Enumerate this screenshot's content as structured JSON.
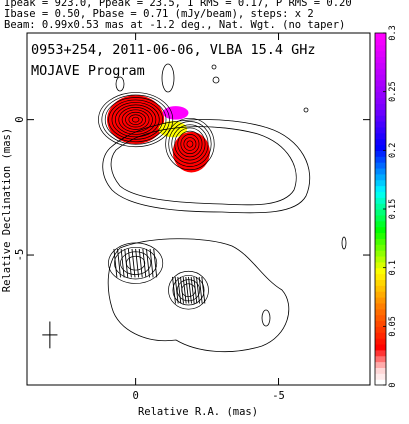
{
  "header": {
    "line1": "Ipeak = 923.0, Ppeak = 23.5, I RMS = 0.17, P RMS = 0.20",
    "line2": "Ibase = 0.50, Pbase = 0.71 (mJy/beam), steps: x 2",
    "line3": "Beam: 0.99x0.53 mas at -1.2 deg., Nat. Wgt. (no taper)"
  },
  "plot": {
    "title": "0953+254, 2011-06-06, VLBA 15.4 GHz",
    "subtitle": "MOJAVE Program"
  },
  "chart_data": {
    "type": "heatmap",
    "title": "0953+254, 2011-06-06, VLBA 15.4 GHz",
    "subtitle": "MOJAVE Program",
    "xlabel": "Relative R.A. (mas)",
    "ylabel": "Relative Declination (mas)",
    "x_range": [
      3.8,
      -8.2
    ],
    "y_range": [
      -9.8,
      3.2
    ],
    "x_ticks": [
      {
        "value": 0,
        "label": "0"
      },
      {
        "value": -5,
        "label": "-5"
      }
    ],
    "y_ticks": [
      {
        "value": 0,
        "label": "0"
      },
      {
        "value": -5,
        "label": "-5"
      }
    ],
    "colorbar": {
      "range": [
        0,
        0.3
      ],
      "ticks": [
        {
          "value": 0,
          "label": "0"
        },
        {
          "value": 0.05,
          "label": "0.05"
        },
        {
          "value": 0.1,
          "label": "0.1"
        },
        {
          "value": 0.15,
          "label": "0.15"
        },
        {
          "value": 0.2,
          "label": "0.2"
        },
        {
          "value": 0.25,
          "label": "0.25"
        },
        {
          "value": 0.3,
          "label": "0.3"
        }
      ],
      "colors": [
        "#ff0000",
        "#ff7f00",
        "#ffff00",
        "#00ff00",
        "#00ffff",
        "#0000ff",
        "#8000ff",
        "#ff00ff"
      ]
    },
    "total_intensity_components": [
      {
        "x": 0.0,
        "y": 0.0,
        "a": 1.3,
        "b": 1.0,
        "levels": 11
      },
      {
        "x": -1.9,
        "y": -0.9,
        "a": 0.85,
        "b": 0.95,
        "levels": 8
      }
    ],
    "polarization_components": [
      {
        "x": 0.0,
        "y": 0.0,
        "a": 1.0,
        "b": 0.9,
        "value": 0.01
      },
      {
        "x": -1.3,
        "y": -0.35,
        "a": 0.5,
        "b": 0.3,
        "value": 0.08
      },
      {
        "x": -1.4,
        "y": 0.25,
        "a": 0.45,
        "b": 0.25,
        "value": 0.3
      },
      {
        "x": -1.95,
        "y": -1.2,
        "a": 0.65,
        "b": 0.75,
        "value": 0.02
      }
    ],
    "fractional_polarization_components": [
      {
        "x": 0.0,
        "y": -5.3,
        "a": 0.95,
        "b": 0.75
      },
      {
        "x": -1.85,
        "y": -6.3,
        "a": 0.7,
        "b": 0.7
      }
    ],
    "beam": {
      "major": 0.99,
      "minor": 0.53,
      "pa_deg": -1.2
    }
  }
}
